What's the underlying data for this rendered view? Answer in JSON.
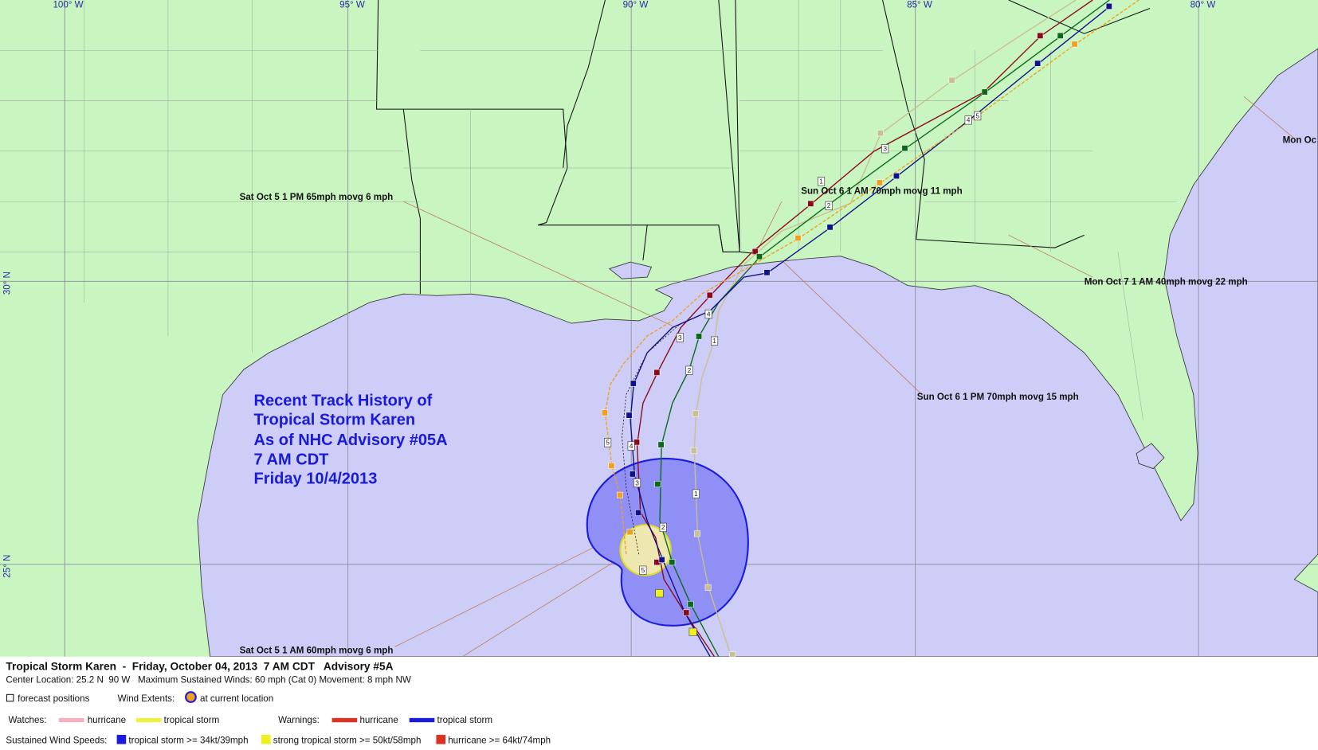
{
  "map": {
    "lon_labels": [
      "100° W",
      "95° W",
      "90° W",
      "85° W",
      "80° W"
    ],
    "lat_labels": [
      "30° N",
      "25° N"
    ],
    "annotations": [
      "Sat Oct 5 1 PM 65mph movg 6 mph",
      "Sun Oct 6 1 AM 70mph movg 11 mph",
      "Mon Oc",
      "Mon Oct 7 1 AM 40mph movg 22 mph",
      "Sun Oct 6 1 PM 70mph movg 15 mph",
      "Sat Oct 5 1 AM 60mph movg 6 mph"
    ],
    "history_text": [
      "Recent Track History of",
      "Tropical Storm Karen",
      "As of NHC Advisory #05A",
      "7 AM CDT",
      "Friday 10/4/2013"
    ],
    "position_markers": [
      "1",
      "2",
      "3",
      "4",
      "5",
      "1",
      "2",
      "3",
      "4",
      "5",
      "1",
      "2",
      "3",
      "4",
      "5"
    ]
  },
  "footer": {
    "title": "Tropical Storm Karen  -  Friday, October 04, 2013  7 AM CDT   Advisory #5A",
    "details": "Center Location: 25.2 N  90 W   Maximum Sustained Winds: 60 mph (Cat 0) Movement: 8 mph NW",
    "forecast_positions": "forecast positions",
    "wind_extents": "Wind Extents:",
    "current_location": "at current location",
    "watches": "Watches:",
    "watch_hurricane": "hurricane",
    "watch_tropical_storm": "tropical storm",
    "warnings": "Warnings:",
    "warning_hurricane": "hurricane",
    "warning_tropical_storm": "tropical storm",
    "wind_speeds": "Sustained Wind Speeds:",
    "speed_ts": "tropical storm >= 34kt/39mph",
    "speed_sts": "strong tropical storm >= 50kt/58mph",
    "speed_hu": "hurricane >= 64kt/74mph"
  }
}
